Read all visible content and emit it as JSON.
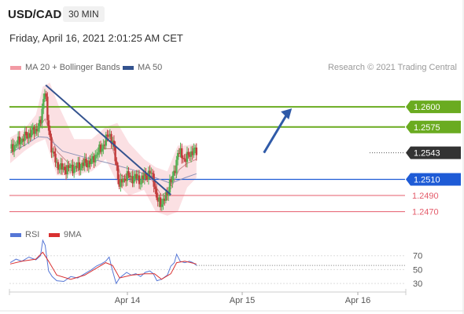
{
  "header": {
    "symbol": "USD/CAD",
    "timeframe": "30 MIN",
    "datetime": "Friday, April 16, 2021 2:01:25 AM CET"
  },
  "legend": {
    "bb_label": "MA 20 + Bollinger Bands",
    "ma50_label": "MA 50",
    "credit": "Research © 2021 Trading Central",
    "rsi_label": "RSI",
    "ma9_label": "9MA"
  },
  "colors": {
    "up_candle": "#55b155",
    "down_candle": "#c23c3c",
    "bollinger": "#f7c6cc",
    "ma20": "#c98b8b",
    "ma50": "#8c91b6",
    "trendline": "#34538f",
    "resistance": "#6aab20",
    "pivot": "#1e5bd6",
    "support": "#e45c6b",
    "rsi": "#5677d6",
    "rsi_ma": "#d93030",
    "current_price_box": "#333333"
  },
  "chart_data": [
    {
      "type": "candlestick",
      "x_tick_labels": [
        "Apr 14",
        "Apr 15",
        "Apr 16"
      ],
      "y_range": [
        1.2455,
        1.264
      ],
      "current_price": "1.2543",
      "levels": [
        {
          "label": "1.2600",
          "value": 1.26,
          "kind": "resistance"
        },
        {
          "label": "1.2575",
          "value": 1.2575,
          "kind": "resistance"
        },
        {
          "label": "1.2510",
          "value": 1.251,
          "kind": "pivot"
        },
        {
          "label": "1.2490",
          "value": 1.249,
          "kind": "support"
        },
        {
          "label": "1.2470",
          "value": 1.247,
          "kind": "support"
        }
      ],
      "trendline": [
        [
          0.305,
          1.2627
        ],
        [
          1.38,
          1.2491
        ]
      ],
      "projection_arrow": [
        [
          2.18,
          1.2543
        ],
        [
          2.42,
          1.2598
        ]
      ],
      "price_path": [
        [
          0.0,
          1.2548
        ],
        [
          0.06,
          1.2555
        ],
        [
          0.12,
          1.2562
        ],
        [
          0.18,
          1.2568
        ],
        [
          0.22,
          1.2572
        ],
        [
          0.26,
          1.2578
        ],
        [
          0.28,
          1.2605
        ],
        [
          0.3,
          1.2625
        ],
        [
          0.32,
          1.2582
        ],
        [
          0.36,
          1.2545
        ],
        [
          0.4,
          1.2528
        ],
        [
          0.46,
          1.2522
        ],
        [
          0.52,
          1.2525
        ],
        [
          0.58,
          1.2525
        ],
        [
          0.64,
          1.253
        ],
        [
          0.7,
          1.2532
        ],
        [
          0.74,
          1.2542
        ],
        [
          0.78,
          1.2548
        ],
        [
          0.82,
          1.2558
        ],
        [
          0.85,
          1.2568
        ],
        [
          0.88,
          1.2555
        ],
        [
          0.91,
          1.253
        ],
        [
          0.94,
          1.25
        ],
        [
          0.96,
          1.2508
        ],
        [
          1.0,
          1.2515
        ],
        [
          1.04,
          1.2512
        ],
        [
          1.08,
          1.2513
        ],
        [
          1.12,
          1.2508
        ],
        [
          1.16,
          1.2515
        ],
        [
          1.2,
          1.2518
        ],
        [
          1.23,
          1.2512
        ],
        [
          1.26,
          1.2484
        ],
        [
          1.29,
          1.248
        ],
        [
          1.32,
          1.2485
        ],
        [
          1.35,
          1.249
        ],
        [
          1.37,
          1.2508
        ],
        [
          1.4,
          1.2512
        ],
        [
          1.42,
          1.2525
        ],
        [
          1.44,
          1.2545
        ],
        [
          1.47,
          1.254
        ],
        [
          1.5,
          1.2535
        ],
        [
          1.54,
          1.254
        ],
        [
          1.57,
          1.2547
        ],
        [
          1.6,
          1.2543
        ]
      ],
      "ma20": [
        [
          0.0,
          1.2545
        ],
        [
          0.12,
          1.2558
        ],
        [
          0.22,
          1.257
        ],
        [
          0.3,
          1.2585
        ],
        [
          0.4,
          1.2545
        ],
        [
          0.55,
          1.2523
        ],
        [
          0.7,
          1.253
        ],
        [
          0.8,
          1.2548
        ],
        [
          0.88,
          1.2548
        ],
        [
          0.95,
          1.2515
        ],
        [
          1.05,
          1.251
        ],
        [
          1.2,
          1.2513
        ],
        [
          1.3,
          1.249
        ],
        [
          1.38,
          1.2498
        ],
        [
          1.45,
          1.2522
        ],
        [
          1.52,
          1.253
        ],
        [
          1.6,
          1.2535
        ]
      ],
      "ma50": [
        [
          0.0,
          1.2543
        ],
        [
          0.12,
          1.2552
        ],
        [
          0.24,
          1.2563
        ],
        [
          0.32,
          1.2562
        ],
        [
          0.45,
          1.2545
        ],
        [
          0.65,
          1.2537
        ],
        [
          0.85,
          1.253
        ],
        [
          1.05,
          1.2522
        ],
        [
          1.25,
          1.2512
        ],
        [
          1.38,
          1.2505
        ],
        [
          1.5,
          1.2512
        ],
        [
          1.6,
          1.2517
        ]
      ],
      "bollinger_band": {
        "upper": [
          [
            0.0,
            1.2562
          ],
          [
            0.12,
            1.2572
          ],
          [
            0.22,
            1.259
          ],
          [
            0.28,
            1.2625
          ],
          [
            0.34,
            1.263
          ],
          [
            0.42,
            1.26
          ],
          [
            0.55,
            1.256
          ],
          [
            0.7,
            1.256
          ],
          [
            0.82,
            1.2575
          ],
          [
            0.92,
            1.258
          ],
          [
            1.02,
            1.2555
          ],
          [
            1.15,
            1.2535
          ],
          [
            1.25,
            1.2525
          ],
          [
            1.35,
            1.252
          ],
          [
            1.44,
            1.2552
          ],
          [
            1.52,
            1.2552
          ],
          [
            1.6,
            1.2555
          ]
        ],
        "lower": [
          [
            0.0,
            1.253
          ],
          [
            0.12,
            1.2545
          ],
          [
            0.22,
            1.2555
          ],
          [
            0.3,
            1.256
          ],
          [
            0.4,
            1.2515
          ],
          [
            0.55,
            1.2515
          ],
          [
            0.7,
            1.252
          ],
          [
            0.82,
            1.2535
          ],
          [
            0.92,
            1.2505
          ],
          [
            1.02,
            1.249
          ],
          [
            1.15,
            1.2497
          ],
          [
            1.25,
            1.247
          ],
          [
            1.35,
            1.2465
          ],
          [
            1.44,
            1.247
          ],
          [
            1.52,
            1.25
          ],
          [
            1.6,
            1.2512
          ]
        ]
      }
    },
    {
      "type": "line",
      "series": [
        {
          "name": "RSI",
          "points": [
            [
              0.0,
              60
            ],
            [
              0.05,
              65
            ],
            [
              0.1,
              62
            ],
            [
              0.16,
              68
            ],
            [
              0.22,
              64
            ],
            [
              0.26,
              70
            ],
            [
              0.28,
              92
            ],
            [
              0.3,
              85
            ],
            [
              0.33,
              48
            ],
            [
              0.36,
              40
            ],
            [
              0.4,
              34
            ],
            [
              0.46,
              33
            ],
            [
              0.52,
              40
            ],
            [
              0.58,
              38
            ],
            [
              0.64,
              44
            ],
            [
              0.7,
              50
            ],
            [
              0.74,
              55
            ],
            [
              0.78,
              58
            ],
            [
              0.82,
              62
            ],
            [
              0.85,
              68
            ],
            [
              0.88,
              48
            ],
            [
              0.91,
              30
            ],
            [
              0.94,
              38
            ],
            [
              1.0,
              46
            ],
            [
              1.04,
              42
            ],
            [
              1.08,
              44
            ],
            [
              1.12,
              40
            ],
            [
              1.16,
              46
            ],
            [
              1.2,
              48
            ],
            [
              1.23,
              44
            ],
            [
              1.26,
              34
            ],
            [
              1.3,
              36
            ],
            [
              1.35,
              42
            ],
            [
              1.38,
              55
            ],
            [
              1.41,
              60
            ],
            [
              1.43,
              72
            ],
            [
              1.46,
              62
            ],
            [
              1.5,
              60
            ],
            [
              1.54,
              62
            ],
            [
              1.57,
              60
            ],
            [
              1.6,
              56
            ]
          ]
        },
        {
          "name": "9MA",
          "points": [
            [
              0.0,
              58
            ],
            [
              0.1,
              62
            ],
            [
              0.22,
              65
            ],
            [
              0.28,
              75
            ],
            [
              0.33,
              62
            ],
            [
              0.4,
              42
            ],
            [
              0.52,
              36
            ],
            [
              0.64,
              42
            ],
            [
              0.74,
              52
            ],
            [
              0.82,
              60
            ],
            [
              0.88,
              56
            ],
            [
              0.94,
              38
            ],
            [
              1.04,
              42
            ],
            [
              1.16,
              44
            ],
            [
              1.24,
              44
            ],
            [
              1.3,
              36
            ],
            [
              1.38,
              44
            ],
            [
              1.43,
              60
            ],
            [
              1.5,
              62
            ],
            [
              1.6,
              58
            ]
          ]
        }
      ],
      "y_tick_labels": [
        "70",
        "50",
        "30"
      ],
      "y_range": [
        20,
        90
      ]
    }
  ]
}
